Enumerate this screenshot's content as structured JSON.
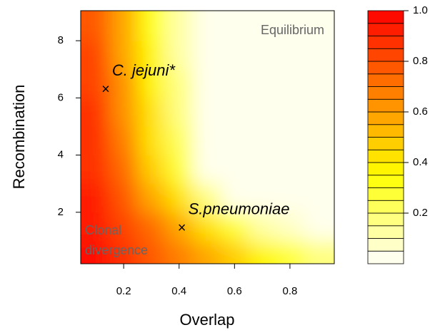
{
  "chart_data": {
    "type": "contour",
    "xlabel": "Overlap",
    "ylabel": "Recombination",
    "xlim": [
      0.045,
      0.96
    ],
    "ylim": [
      0.2,
      9.05
    ],
    "xticks": [
      0.2,
      0.4,
      0.6,
      0.8
    ],
    "yticks": [
      2,
      4,
      6,
      8
    ],
    "x_edges": [
      0.05,
      0.15,
      0.25,
      0.35,
      0.45,
      0.55,
      0.65,
      0.75,
      0.85,
      0.95
    ],
    "y_edges": [
      0.2,
      1,
      2,
      3,
      4,
      5,
      6,
      7,
      8,
      9
    ],
    "z": [
      [
        0.98,
        0.9,
        0.8,
        0.7,
        0.6,
        0.5,
        0.4,
        0.3,
        0.2
      ],
      [
        0.95,
        0.85,
        0.72,
        0.6,
        0.45,
        0.3,
        0.15,
        0.08,
        0.05
      ],
      [
        0.92,
        0.78,
        0.6,
        0.42,
        0.2,
        0.05,
        0.02,
        0,
        0
      ],
      [
        0.9,
        0.72,
        0.5,
        0.3,
        0.05,
        0,
        0,
        0,
        0
      ],
      [
        0.88,
        0.68,
        0.45,
        0.25,
        0.02,
        0,
        0,
        0,
        0
      ],
      [
        0.86,
        0.65,
        0.42,
        0.2,
        0,
        0,
        0,
        0,
        0
      ],
      [
        0.84,
        0.62,
        0.4,
        0.18,
        0,
        0,
        0,
        0,
        0
      ],
      [
        0.82,
        0.6,
        0.38,
        0.15,
        0,
        0,
        0,
        0,
        0
      ],
      [
        0.8,
        0.58,
        0.35,
        0.12,
        0,
        0,
        0,
        0,
        0
      ]
    ],
    "levels": [
      0,
      0.05,
      0.1,
      0.15,
      0.2,
      0.25,
      0.3,
      0.35,
      0.4,
      0.45,
      0.5,
      0.55,
      0.6,
      0.65,
      0.7,
      0.75,
      0.8,
      0.85,
      0.9,
      0.95,
      1
    ],
    "colorbar_ticks": [
      0.2,
      0.4,
      0.6,
      0.8,
      {
        "value": 1,
        "label": "1.0"
      }
    ],
    "colormap": [
      {
        "at": 0,
        "color": "#ffffff"
      },
      {
        "at": 0.35,
        "color": "#ffff00"
      },
      {
        "at": 1,
        "color": "#ff0000"
      }
    ],
    "points": [
      {
        "name": "C. jejuni*",
        "x": 0.135,
        "y": 6.3
      },
      {
        "name": "S.pneumoniae",
        "x": 0.41,
        "y": 1.45
      }
    ],
    "annotations": [
      [
        "Equilibrium"
      ],
      [
        "Clonal",
        "divergence"
      ]
    ]
  }
}
